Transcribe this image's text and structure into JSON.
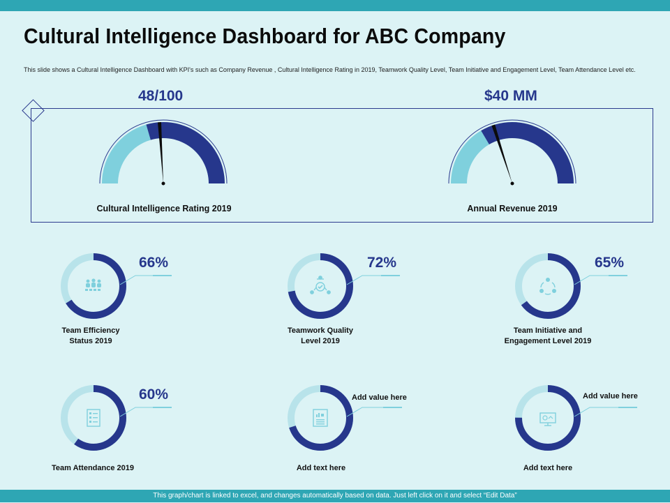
{
  "header": {
    "title": "Cultural Intelligence Dashboard for ABC Company",
    "description": "This slide shows a Cultural Intelligence Dashboard with KPI's such as Company Revenue , Cultural Intelligence Rating in 2019, Teamwork Quality Level, Team Initiative and Engagement Level, Team Attendance Level etc."
  },
  "gauges": [
    {
      "value_text": "48/100",
      "label": "Cultural Intelligence Rating 2019",
      "value": 48,
      "max": 100
    },
    {
      "value_text": "$40 MM",
      "label": "Annual Revenue 2019",
      "fraction": 0.4
    }
  ],
  "kpis": [
    {
      "pct_text": "66%",
      "percent": 66,
      "label": "Team Efficiency\nStatus 2019",
      "icon": "team-group-icon"
    },
    {
      "pct_text": "72%",
      "percent": 72,
      "label": "Teamwork Quality\nLevel 2019",
      "icon": "quality-network-icon"
    },
    {
      "pct_text": "65%",
      "percent": 65,
      "label": "Team Initiative and\nEngagement Level 2019",
      "icon": "team-cycle-icon"
    },
    {
      "pct_text": "60%",
      "percent": 60,
      "label": "Team Attendance 2019",
      "icon": "attendance-sheet-icon"
    },
    {
      "note_text": "Add value here",
      "percent": 70,
      "label": "Add text here",
      "icon": "report-chart-icon"
    },
    {
      "note_text": "Add value here",
      "percent": 75,
      "label": "Add text here",
      "icon": "presentation-board-icon"
    }
  ],
  "footer": {
    "text": "This graph/chart is linked to excel, and changes automatically  based on data. Just left click on it and select “Edit Data”"
  },
  "colors": {
    "dark": "#26378c",
    "light": "#7fd0dd",
    "track": "#b8e3ea",
    "accent": "#2ea6b4"
  }
}
